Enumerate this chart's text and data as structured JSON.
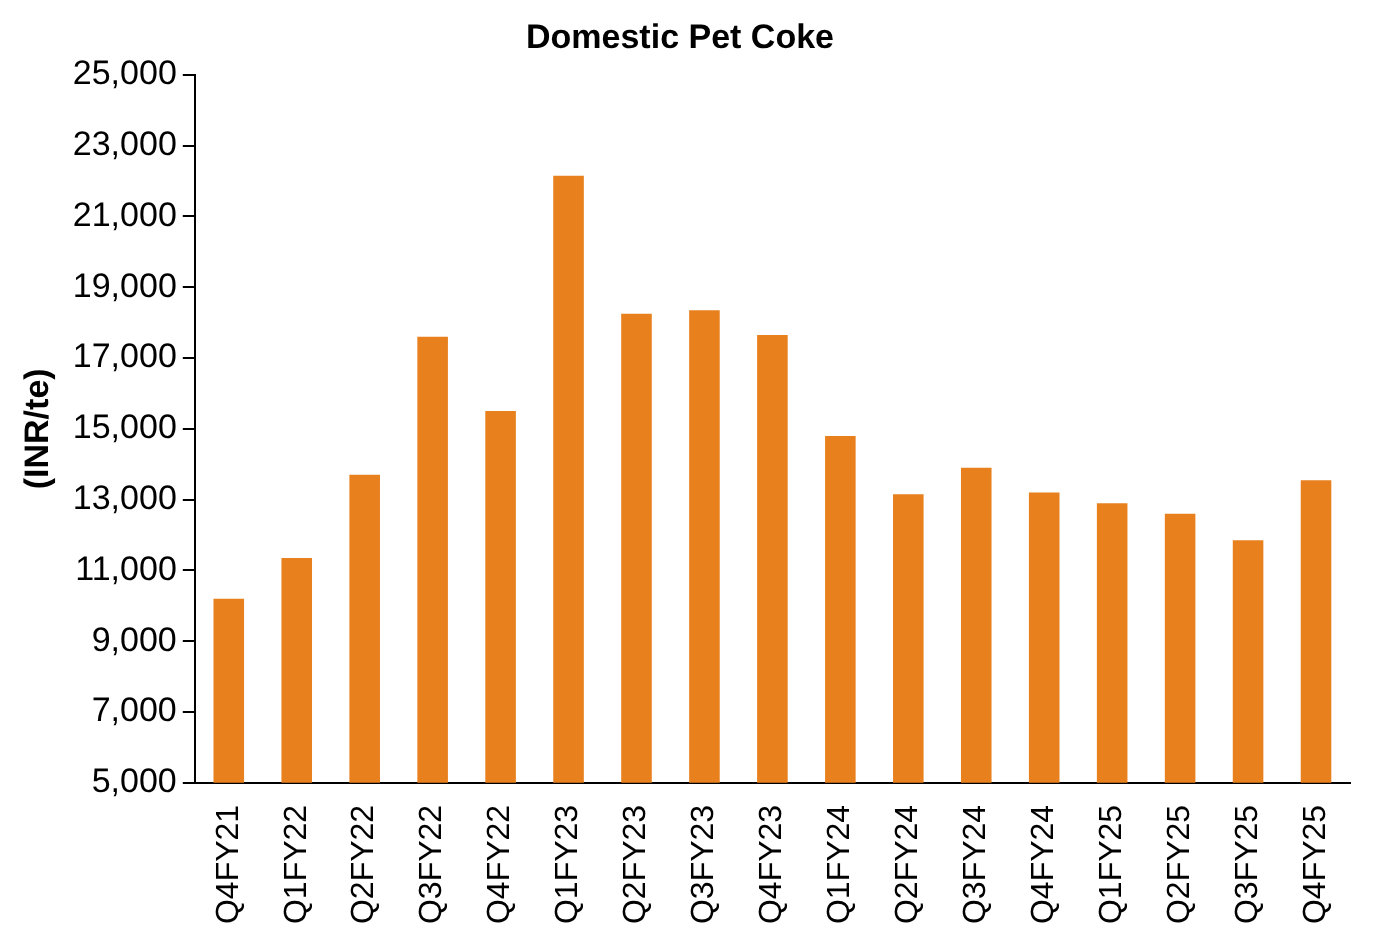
{
  "chart_data": {
    "type": "bar",
    "title": "Domestic Pet Coke",
    "ylabel": "(INR/te)",
    "categories": [
      "Q4FY21",
      "Q1FY22",
      "Q2FY22",
      "Q3FY22",
      "Q4FY22",
      "Q1FY23",
      "Q2FY23",
      "Q3FY23",
      "Q4FY23",
      "Q1FY24",
      "Q2FY24",
      "Q3FY24",
      "Q4FY24",
      "Q1FY25",
      "Q2FY25",
      "Q3FY25",
      "Q4FY25"
    ],
    "values": [
      10200,
      11350,
      13700,
      17600,
      15500,
      22150,
      18250,
      18350,
      17650,
      14800,
      13150,
      13900,
      13200,
      12900,
      12600,
      11850,
      13550
    ],
    "color": "#e8801e",
    "ylim": [
      5000,
      25000
    ],
    "yticks": [
      {
        "value": 5000,
        "label": "5,000"
      },
      {
        "value": 7000,
        "label": "7,000"
      },
      {
        "value": 9000,
        "label": "9,000"
      },
      {
        "value": 11000,
        "label": "11,000"
      },
      {
        "value": 13000,
        "label": "13,000"
      },
      {
        "value": 15000,
        "label": "15,000"
      },
      {
        "value": 17000,
        "label": "17,000"
      },
      {
        "value": 19000,
        "label": "19,000"
      },
      {
        "value": 21000,
        "label": "21,000"
      },
      {
        "value": 23000,
        "label": "23,000"
      },
      {
        "value": 25000,
        "label": "25,000"
      }
    ],
    "grid": false,
    "legend": false
  }
}
